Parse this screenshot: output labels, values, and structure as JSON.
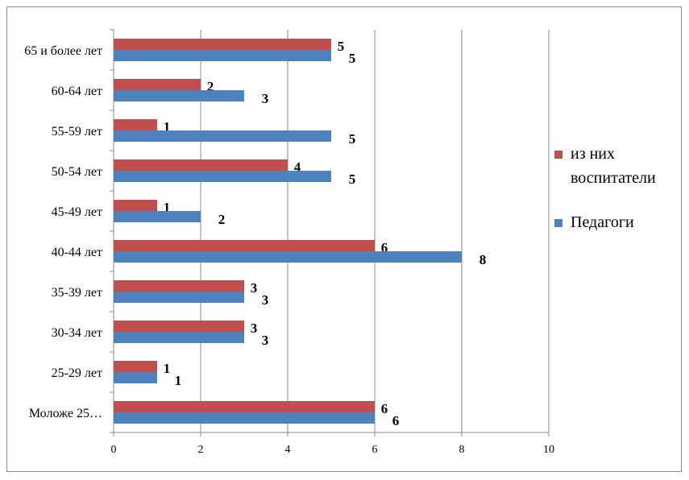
{
  "chart_data": {
    "type": "bar",
    "orientation": "horizontal",
    "categories": [
      "65 и более лет",
      "60-64 лет",
      "55-59 лет",
      "50-54 лет",
      "45-49 лет",
      "40-44 лет",
      "35-39 лет",
      "30-34 лет",
      "25-29 лет",
      "Моложе 25…"
    ],
    "series": [
      {
        "name": "из них воспитатели",
        "color": "#c0504d",
        "values": [
          5,
          2,
          1,
          4,
          1,
          6,
          3,
          3,
          1,
          6
        ]
      },
      {
        "name": "Педагоги",
        "color": "#4f81bd",
        "values": [
          5,
          3,
          5,
          5,
          2,
          8,
          3,
          3,
          1,
          6
        ]
      }
    ],
    "xlim": [
      0,
      10
    ],
    "xticks": [
      0,
      2,
      4,
      6,
      8,
      10
    ],
    "grid": "vertical",
    "legend_position": "right",
    "data_labels": true,
    "title": "",
    "xlabel": "",
    "ylabel": ""
  },
  "legend": {
    "items": [
      {
        "label": "из них воспитатели",
        "color": "#c0504d"
      },
      {
        "label": "Педагоги",
        "color": "#4f81bd"
      }
    ]
  }
}
